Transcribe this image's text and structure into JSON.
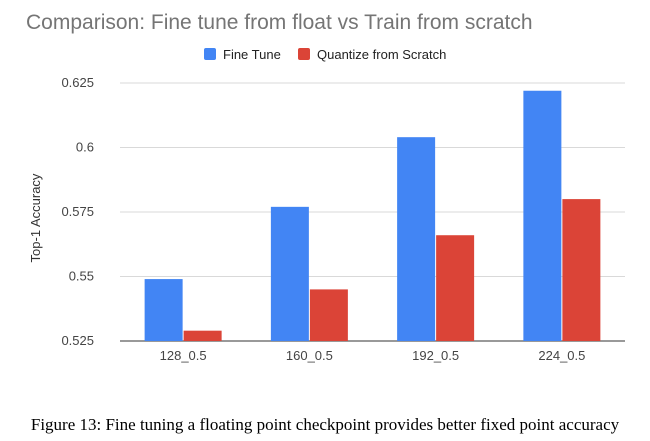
{
  "caption": "Figure 13: Fine tuning a floating point checkpoint provides better fixed point accuracy",
  "chart_data": {
    "type": "bar",
    "title": "Comparison: Fine tune from float vs Train from scratch",
    "xlabel": "",
    "ylabel": "Top-1 Accuracy",
    "categories": [
      "128_0.5",
      "160_0.5",
      "192_0.5",
      "224_0.5"
    ],
    "series": [
      {
        "name": "Fine Tune",
        "color": "#4285F4",
        "values": [
          0.549,
          0.577,
          0.604,
          0.622
        ]
      },
      {
        "name": "Quantize from Scratch",
        "color": "#DB4437",
        "values": [
          0.529,
          0.545,
          0.566,
          0.58
        ]
      }
    ],
    "ylim": [
      0.525,
      0.625
    ],
    "yticks": [
      0.525,
      0.55,
      0.575,
      0.6,
      0.625
    ],
    "ytick_labels": [
      "0.525",
      "0.55",
      "0.575",
      "0.6",
      "0.625"
    ],
    "grid": true,
    "legend_position": "top-center"
  }
}
